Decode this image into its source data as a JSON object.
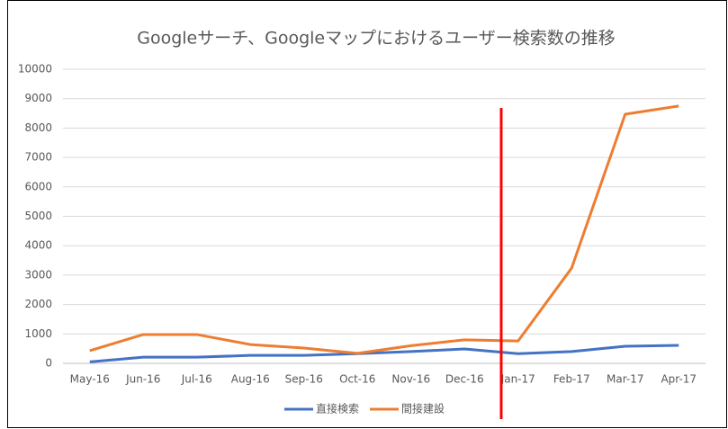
{
  "chart_data": {
    "type": "line",
    "title": "Googleサーチ、Googleマップにおけるユーザー検索数の推移",
    "categories": [
      "May-16",
      "Jun-16",
      "Jul-16",
      "Aug-16",
      "Sep-16",
      "Oct-16",
      "Nov-16",
      "Dec-16",
      "Jan-17",
      "Feb-17",
      "Mar-17",
      "Apr-17"
    ],
    "series": [
      {
        "name": "直接検索",
        "color": "#4472c4",
        "values": [
          50,
          210,
          210,
          270,
          270,
          330,
          400,
          490,
          330,
          400,
          580,
          610
        ]
      },
      {
        "name": "間接建設",
        "color": "#ed7d31",
        "values": [
          430,
          980,
          980,
          640,
          520,
          340,
          600,
          800,
          760,
          3240,
          8470,
          8750
        ]
      }
    ],
    "ylim": [
      0,
      10000
    ],
    "yticks": [
      0,
      1000,
      2000,
      3000,
      4000,
      5000,
      6000,
      7000,
      8000,
      9000,
      10000
    ],
    "grid": true,
    "legend": "bottom"
  }
}
